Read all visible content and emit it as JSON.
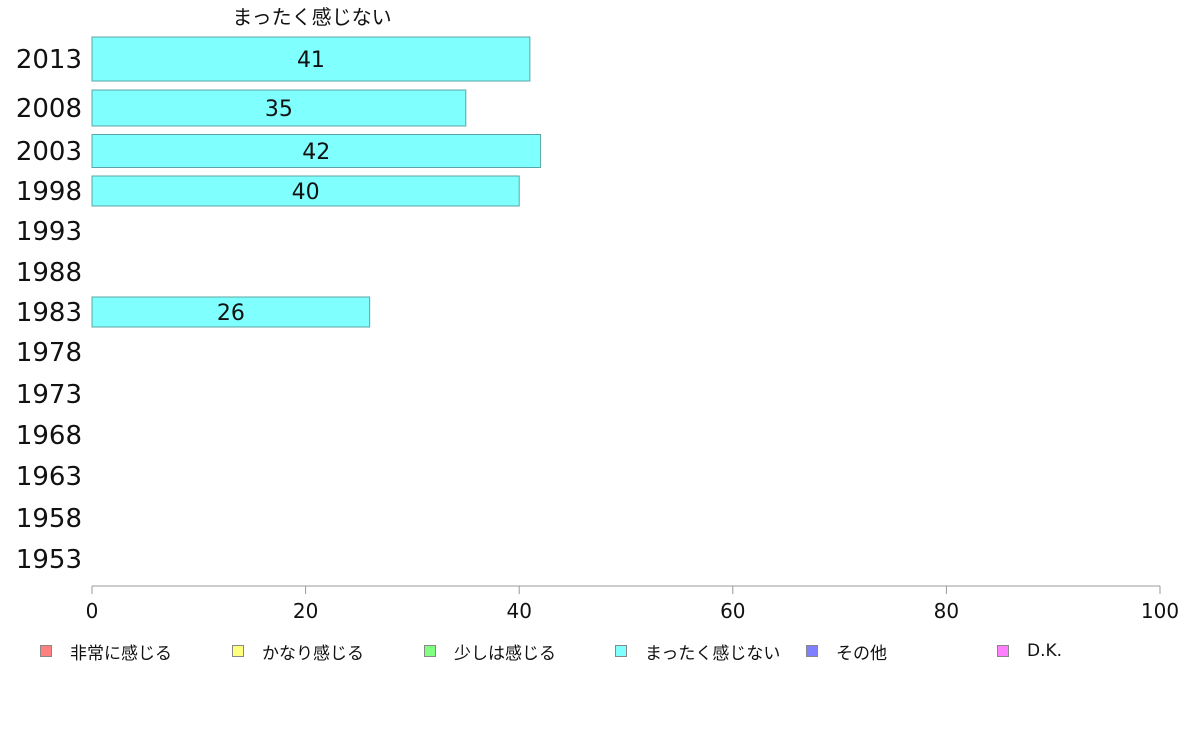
{
  "chart_data": {
    "type": "bar",
    "orientation": "horizontal",
    "title": "まったく感じない",
    "categories": [
      "2013",
      "2008",
      "2003",
      "1998",
      "1993",
      "1988",
      "1983",
      "1978",
      "1973",
      "1968",
      "1963",
      "1958",
      "1953"
    ],
    "series": [
      {
        "name": "まったく感じない",
        "color": "#80ffff",
        "values": [
          41,
          35,
          42,
          40,
          null,
          null,
          26,
          null,
          null,
          null,
          null,
          null,
          null
        ],
        "data_labels": [
          "41",
          "35",
          "42",
          "40",
          "",
          "",
          "26",
          "",
          "",
          "",
          "",
          "",
          ""
        ]
      }
    ],
    "xlim": [
      0,
      100
    ],
    "x_ticks": [
      "0",
      "20",
      "40",
      "60",
      "80",
      "100"
    ],
    "xlabel": "",
    "ylabel": "",
    "grid": false,
    "legend_position": "bottom",
    "legend": [
      {
        "label": "非常に感じる",
        "color": "#ff8080"
      },
      {
        "label": "かなり感じる",
        "color": "#ffff80"
      },
      {
        "label": "少しは感じる",
        "color": "#80ff80"
      },
      {
        "label": "まったく感じない",
        "color": "#80ffff"
      },
      {
        "label": "その他",
        "color": "#8080ff"
      },
      {
        "label": "D.K.",
        "color": "#ff80ff"
      }
    ]
  }
}
